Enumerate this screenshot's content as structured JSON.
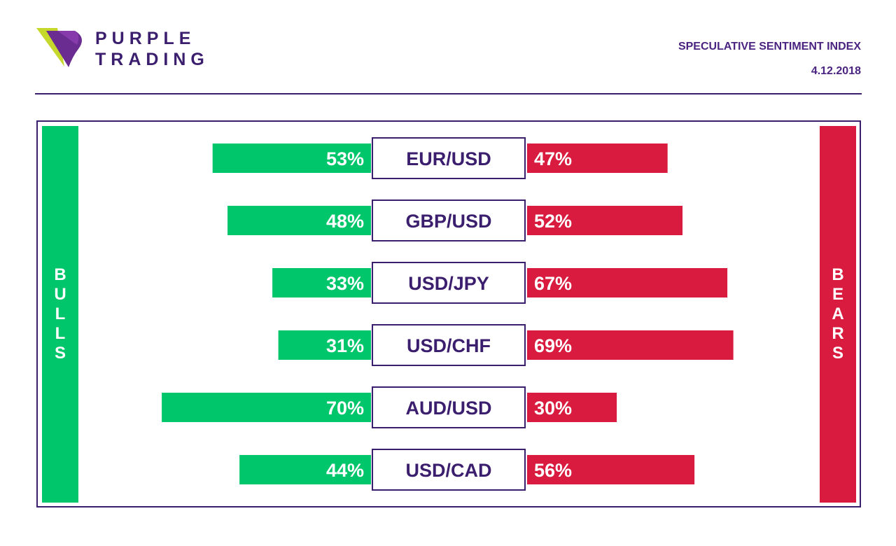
{
  "brand": {
    "line1": "PURPLE",
    "line2": "TRADING"
  },
  "header": {
    "title": "SPECULATIVE SENTIMENT INDEX",
    "date": "4.12.2018"
  },
  "colors": {
    "bulls": "#00c66b",
    "bears": "#d81b3e",
    "brand_purple": "#3b1f6e"
  },
  "chart_data": {
    "type": "bar",
    "orientation": "diverging-horizontal",
    "side_labels": {
      "left": "BULLS",
      "right": "BEARS"
    },
    "categories": [
      "EUR/USD",
      "GBP/USD",
      "USD/JPY",
      "USD/CHF",
      "AUD/USD",
      "USD/CAD"
    ],
    "series": [
      {
        "name": "BULLS",
        "values": [
          53,
          48,
          33,
          31,
          70,
          44
        ]
      },
      {
        "name": "BEARS",
        "values": [
          47,
          52,
          67,
          69,
          30,
          56
        ]
      }
    ],
    "value_labels": {
      "bulls": [
        "53%",
        "48%",
        "33%",
        "31%",
        "70%",
        "44%"
      ],
      "bears": [
        "47%",
        "52%",
        "67%",
        "69%",
        "30%",
        "56%"
      ]
    }
  }
}
